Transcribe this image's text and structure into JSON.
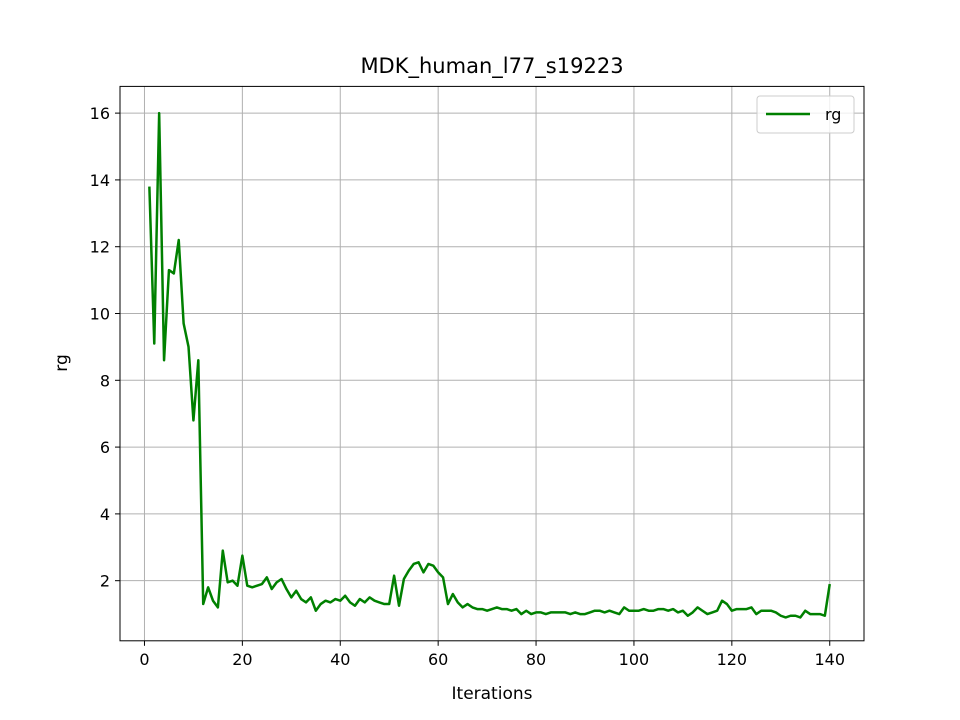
{
  "chart_data": {
    "type": "line",
    "title": "MDK_human_l77_s19223",
    "xlabel": "Iterations",
    "ylabel": "rg",
    "xlim": [
      -5,
      147
    ],
    "ylim": [
      0.2,
      16.8
    ],
    "xticks": [
      0,
      20,
      40,
      60,
      80,
      100,
      120,
      140
    ],
    "yticks": [
      2,
      4,
      6,
      8,
      10,
      12,
      14,
      16
    ],
    "grid": true,
    "legend_position": "top-right",
    "series": [
      {
        "name": "rg",
        "color": "#008000",
        "x": [
          1,
          2,
          3,
          4,
          5,
          6,
          7,
          8,
          9,
          10,
          11,
          12,
          13,
          14,
          15,
          16,
          17,
          18,
          19,
          20,
          21,
          22,
          23,
          24,
          25,
          26,
          27,
          28,
          29,
          30,
          31,
          32,
          33,
          34,
          35,
          36,
          37,
          38,
          39,
          40,
          41,
          42,
          43,
          44,
          45,
          46,
          47,
          48,
          49,
          50,
          51,
          52,
          53,
          54,
          55,
          56,
          57,
          58,
          59,
          60,
          61,
          62,
          63,
          64,
          65,
          66,
          67,
          68,
          69,
          70,
          71,
          72,
          73,
          74,
          75,
          76,
          77,
          78,
          79,
          80,
          81,
          82,
          83,
          84,
          85,
          86,
          87,
          88,
          89,
          90,
          91,
          92,
          93,
          94,
          95,
          96,
          97,
          98,
          99,
          100,
          101,
          102,
          103,
          104,
          105,
          106,
          107,
          108,
          109,
          110,
          111,
          112,
          113,
          114,
          115,
          116,
          117,
          118,
          119,
          120,
          121,
          122,
          123,
          124,
          125,
          126,
          127,
          128,
          129,
          130,
          131,
          132,
          133,
          134,
          135,
          136,
          137,
          138,
          139,
          140
        ],
        "y": [
          13.8,
          9.1,
          16.0,
          8.6,
          11.3,
          11.2,
          12.2,
          9.7,
          9.0,
          6.8,
          8.6,
          1.3,
          1.8,
          1.4,
          1.2,
          2.9,
          1.95,
          2.0,
          1.85,
          2.75,
          1.85,
          1.8,
          1.85,
          1.9,
          2.1,
          1.75,
          1.95,
          2.05,
          1.75,
          1.5,
          1.7,
          1.45,
          1.35,
          1.5,
          1.1,
          1.3,
          1.4,
          1.35,
          1.45,
          1.4,
          1.55,
          1.35,
          1.25,
          1.45,
          1.35,
          1.5,
          1.4,
          1.35,
          1.3,
          1.3,
          2.15,
          1.25,
          2.05,
          2.3,
          2.5,
          2.55,
          2.25,
          2.5,
          2.45,
          2.25,
          2.1,
          1.3,
          1.6,
          1.35,
          1.2,
          1.3,
          1.2,
          1.15,
          1.15,
          1.1,
          1.15,
          1.2,
          1.15,
          1.15,
          1.1,
          1.15,
          1.0,
          1.1,
          1.0,
          1.05,
          1.05,
          1.0,
          1.05,
          1.05,
          1.05,
          1.05,
          1.0,
          1.05,
          1.0,
          1.0,
          1.05,
          1.1,
          1.1,
          1.05,
          1.1,
          1.05,
          1.0,
          1.2,
          1.1,
          1.1,
          1.1,
          1.15,
          1.1,
          1.1,
          1.15,
          1.15,
          1.1,
          1.15,
          1.05,
          1.1,
          0.95,
          1.05,
          1.2,
          1.1,
          1.0,
          1.05,
          1.1,
          1.4,
          1.3,
          1.1,
          1.15,
          1.15,
          1.15,
          1.2,
          1.0,
          1.1,
          1.1,
          1.1,
          1.05,
          0.95,
          0.9,
          0.95,
          0.95,
          0.9,
          1.1,
          1.0,
          1.0,
          1.0,
          0.95,
          1.9
        ]
      }
    ]
  }
}
